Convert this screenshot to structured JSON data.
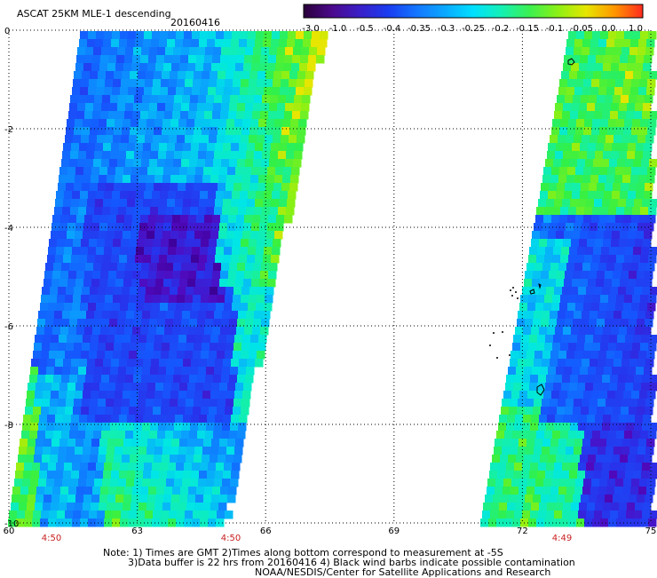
{
  "header": {
    "title": "ASCAT 25KM MLE-1 descending",
    "date": "20160416"
  },
  "colorbar": {
    "labels": [
      "-3.0",
      "-1.0",
      "-0.5",
      "-0.4",
      "-0.35",
      "-0.3",
      "-0.25",
      "-0.2",
      "-0.15",
      "-0.1",
      "-0.05",
      "0.0",
      "1.0"
    ],
    "colors": [
      "#2a003a",
      "#4b0a8c",
      "#3a1fc8",
      "#1a3cf0",
      "#1476ff",
      "#0aa8ff",
      "#00e0ff",
      "#14f0b4",
      "#3cf050",
      "#8cf014",
      "#e6e600",
      "#ff9600",
      "#ff2a1e"
    ]
  },
  "map": {
    "lat_labels": [
      "0",
      "-2",
      "-4",
      "-6",
      "-8",
      "-10"
    ],
    "lon_labels": [
      "60",
      "63",
      "66",
      "69",
      "72",
      "75"
    ],
    "time_labels": [
      "4:50",
      "4:50",
      "4:49"
    ],
    "time_label_color": "#c81e1e"
  },
  "notes": {
    "line1": "Note: 1) Times are GMT 2)Times along bottom correspond to measurement at -5S",
    "line2": "3)Data buffer is 22 hrs from 20160416 4) Black wind barbs indicate possible contamination",
    "line3": "NOAA/NESDIS/Center for Satellite Applications and Research"
  }
}
